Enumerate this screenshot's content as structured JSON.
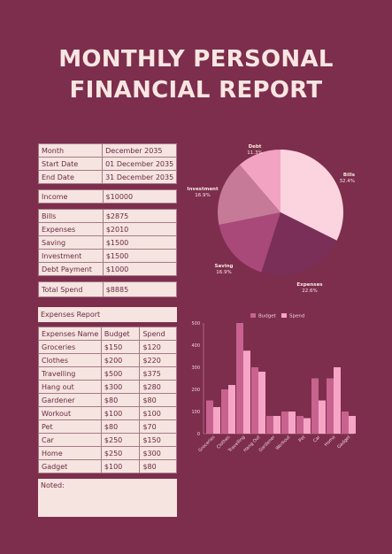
{
  "title": {
    "line1": "MONTHLY PERSONAL",
    "line2": "FINANCIAL REPORT"
  },
  "info": [
    {
      "label": "Month",
      "value": "December 2035"
    },
    {
      "label": "Start Date",
      "value": "01 December 2035"
    },
    {
      "label": "End Date",
      "value": "31 December 2035"
    }
  ],
  "income": {
    "label": "Income",
    "value": "$10000"
  },
  "spending": [
    {
      "label": "Bills",
      "value": "$2875"
    },
    {
      "label": "Expenses",
      "value": "$2010"
    },
    {
      "label": "Saving",
      "value": "$1500"
    },
    {
      "label": "Investment",
      "value": "$1500"
    },
    {
      "label": "Debt Payment",
      "value": "$1000"
    }
  ],
  "total": {
    "label": "Total Spend",
    "value": "$8885"
  },
  "expenses_report": {
    "heading": "Expenses Report",
    "columns": [
      "Expenses Name",
      "Budget",
      "Spend"
    ],
    "rows": [
      [
        "Groceries",
        "$150",
        "$120"
      ],
      [
        "Clothes",
        "$200",
        "$220"
      ],
      [
        "Travelling",
        "$500",
        "$375"
      ],
      [
        "Hang out",
        "$300",
        "$280"
      ],
      [
        "Gardener",
        "$80",
        "$80"
      ],
      [
        "Workout",
        "$100",
        "$100"
      ],
      [
        "Pet",
        "$80",
        "$70"
      ],
      [
        "Car",
        "$250",
        "$150"
      ],
      [
        "Home",
        "$250",
        "$300"
      ],
      [
        "Gadget",
        "$100",
        "$80"
      ]
    ]
  },
  "noted": {
    "label": "Noted:"
  },
  "colors": {
    "background": "#7d2e4c",
    "panel": "#f5e4e0",
    "text": "#6a2a43"
  },
  "chart_data": [
    {
      "type": "pie",
      "slices": [
        {
          "label": "Bills",
          "pct": "32.4%",
          "value": 32.4,
          "color": "#fcd4e0"
        },
        {
          "label": "Expenses",
          "pct": "22.6%",
          "value": 22.6,
          "color": "#7a2f58"
        },
        {
          "label": "Saving",
          "pct": "16.9%",
          "value": 16.9,
          "color": "#a8497a"
        },
        {
          "label": "Investment",
          "pct": "16.9%",
          "value": 16.9,
          "color": "#c67a98"
        },
        {
          "label": "Debt",
          "pct": "11.3%",
          "value": 11.3,
          "color": "#f2a3c2"
        }
      ]
    },
    {
      "type": "bar",
      "categories": [
        "Groceries",
        "Clothes",
        "Travelling",
        "Hang Out",
        "Gardener",
        "Workout",
        "Pet",
        "Car",
        "Home",
        "Gadget"
      ],
      "series": [
        {
          "name": "Budget",
          "values": [
            150,
            200,
            500,
            300,
            80,
            100,
            80,
            250,
            250,
            100
          ],
          "color": "#c8638f"
        },
        {
          "name": "Spend",
          "values": [
            120,
            220,
            375,
            280,
            80,
            100,
            70,
            150,
            300,
            80
          ],
          "color": "#f6a5c6"
        }
      ],
      "yticks": [
        0,
        100,
        200,
        300,
        400,
        500
      ],
      "ylim": [
        0,
        500
      ],
      "legend": "top",
      "grid": false
    }
  ]
}
